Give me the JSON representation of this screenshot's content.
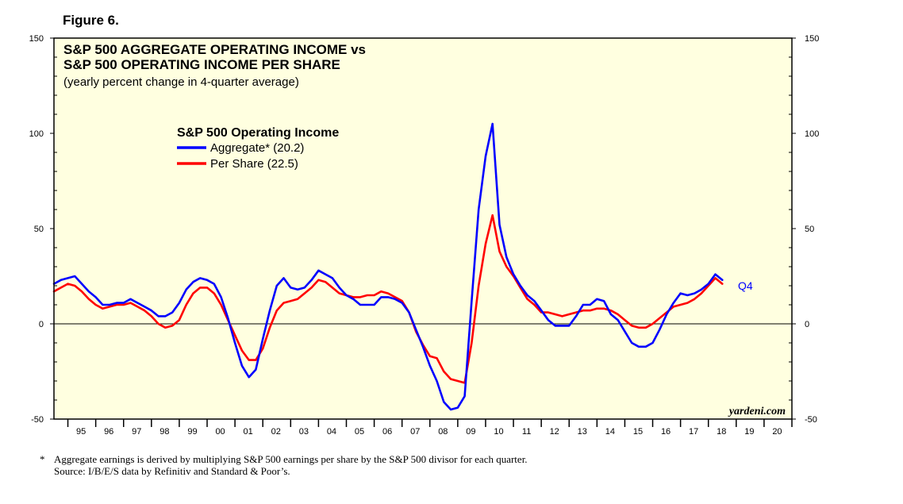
{
  "figure_label": "Figure 6.",
  "footnote": {
    "marker": "*",
    "line1": "Aggregate earnings is  derived by multiplying S&P 500 earnings per share by the S&P 500 divisor for each quarter.",
    "line2": "Source: I/B/E/S data by Refinitiv and Standard & Poor’s."
  },
  "colors": {
    "plot_bg": "#ffffe0",
    "aggregate": "#0000ff",
    "per_share": "#ff0000",
    "axis": "#000000"
  },
  "chart_data": {
    "type": "line",
    "title_line1": "S&P 500 AGGREGATE OPERATING  INCOME vs",
    "title_line2": "S&P 500 OPERATING INCOME PER SHARE",
    "subtitle": "(yearly percent change in 4-quarter average)",
    "legend_title": "S&P 500 Operating Income",
    "watermark": "yardeni.com",
    "end_label": "Q4",
    "ylim": [
      -50,
      150
    ],
    "yticks": [
      -50,
      0,
      50,
      100,
      150
    ],
    "ytick_labels": [
      "-50",
      "0",
      "50",
      "100",
      "150"
    ],
    "grid": false,
    "zero_line": true,
    "xlim": [
      1994.5,
      2021
    ],
    "year_labels": [
      "95",
      "96",
      "97",
      "98",
      "99",
      "00",
      "01",
      "02",
      "03",
      "04",
      "05",
      "06",
      "07",
      "08",
      "09",
      "10",
      "11",
      "12",
      "13",
      "14",
      "15",
      "16",
      "17",
      "18",
      "19",
      "20"
    ],
    "legend_position": "upper-left",
    "series": [
      {
        "name": "Aggregate* (20.2)",
        "color": "#0000ff",
        "points": [
          [
            1994.5,
            21
          ],
          [
            1994.75,
            23
          ],
          [
            1995.0,
            24
          ],
          [
            1995.25,
            25
          ],
          [
            1995.5,
            21
          ],
          [
            1995.75,
            17
          ],
          [
            1996.0,
            14
          ],
          [
            1996.25,
            10
          ],
          [
            1996.5,
            10
          ],
          [
            1996.75,
            11
          ],
          [
            1997.0,
            11
          ],
          [
            1997.25,
            13
          ],
          [
            1997.5,
            11
          ],
          [
            1997.75,
            9
          ],
          [
            1998.0,
            7
          ],
          [
            1998.25,
            4
          ],
          [
            1998.5,
            4
          ],
          [
            1998.75,
            6
          ],
          [
            1999.0,
            11
          ],
          [
            1999.25,
            18
          ],
          [
            1999.5,
            22
          ],
          [
            1999.75,
            24
          ],
          [
            2000.0,
            23
          ],
          [
            2000.25,
            21
          ],
          [
            2000.5,
            14
          ],
          [
            2000.75,
            3
          ],
          [
            2001.0,
            -10
          ],
          [
            2001.25,
            -22
          ],
          [
            2001.5,
            -28
          ],
          [
            2001.75,
            -24
          ],
          [
            2002.0,
            -8
          ],
          [
            2002.25,
            7
          ],
          [
            2002.5,
            20
          ],
          [
            2002.75,
            24
          ],
          [
            2003.0,
            19
          ],
          [
            2003.25,
            18
          ],
          [
            2003.5,
            19
          ],
          [
            2003.75,
            23
          ],
          [
            2004.0,
            28
          ],
          [
            2004.25,
            26
          ],
          [
            2004.5,
            24
          ],
          [
            2004.75,
            19
          ],
          [
            2005.0,
            15
          ],
          [
            2005.25,
            13
          ],
          [
            2005.5,
            10
          ],
          [
            2005.75,
            10
          ],
          [
            2006.0,
            10
          ],
          [
            2006.25,
            14
          ],
          [
            2006.5,
            14
          ],
          [
            2006.75,
            13
          ],
          [
            2007.0,
            11
          ],
          [
            2007.25,
            6
          ],
          [
            2007.5,
            -3
          ],
          [
            2007.75,
            -12
          ],
          [
            2008.0,
            -22
          ],
          [
            2008.25,
            -30
          ],
          [
            2008.5,
            -41
          ],
          [
            2008.75,
            -45
          ],
          [
            2009.0,
            -44
          ],
          [
            2009.25,
            -38
          ],
          [
            2009.5,
            12
          ],
          [
            2009.75,
            60
          ],
          [
            2010.0,
            88
          ],
          [
            2010.25,
            105
          ],
          [
            2010.5,
            52
          ],
          [
            2010.75,
            35
          ],
          [
            2011.0,
            26
          ],
          [
            2011.25,
            20
          ],
          [
            2011.5,
            15
          ],
          [
            2011.75,
            12
          ],
          [
            2012.0,
            7
          ],
          [
            2012.25,
            2
          ],
          [
            2012.5,
            -1
          ],
          [
            2012.75,
            -1
          ],
          [
            2013.0,
            -1
          ],
          [
            2013.25,
            4
          ],
          [
            2013.5,
            10
          ],
          [
            2013.75,
            10
          ],
          [
            2014.0,
            13
          ],
          [
            2014.25,
            12
          ],
          [
            2014.5,
            5
          ],
          [
            2014.75,
            2
          ],
          [
            2015.0,
            -4
          ],
          [
            2015.25,
            -10
          ],
          [
            2015.5,
            -12
          ],
          [
            2015.75,
            -12
          ],
          [
            2016.0,
            -10
          ],
          [
            2016.25,
            -3
          ],
          [
            2016.5,
            5
          ],
          [
            2016.75,
            11
          ],
          [
            2017.0,
            16
          ],
          [
            2017.25,
            15
          ],
          [
            2017.5,
            16
          ],
          [
            2017.75,
            18
          ],
          [
            2018.0,
            21
          ],
          [
            2018.25,
            26
          ],
          [
            2018.5,
            23
          ]
        ]
      },
      {
        "name": "Per Share (22.5)",
        "color": "#ff0000",
        "points": [
          [
            1994.5,
            17
          ],
          [
            1994.75,
            19
          ],
          [
            1995.0,
            21
          ],
          [
            1995.25,
            20
          ],
          [
            1995.5,
            17
          ],
          [
            1995.75,
            13
          ],
          [
            1996.0,
            10
          ],
          [
            1996.25,
            8
          ],
          [
            1996.5,
            9
          ],
          [
            1996.75,
            10
          ],
          [
            1997.0,
            10
          ],
          [
            1997.25,
            11
          ],
          [
            1997.5,
            9
          ],
          [
            1997.75,
            7
          ],
          [
            1998.0,
            4
          ],
          [
            1998.25,
            0
          ],
          [
            1998.5,
            -2
          ],
          [
            1998.75,
            -1
          ],
          [
            1999.0,
            2
          ],
          [
            1999.25,
            10
          ],
          [
            1999.5,
            16
          ],
          [
            1999.75,
            19
          ],
          [
            2000.0,
            19
          ],
          [
            2000.25,
            16
          ],
          [
            2000.5,
            10
          ],
          [
            2000.75,
            2
          ],
          [
            2001.0,
            -6
          ],
          [
            2001.25,
            -14
          ],
          [
            2001.5,
            -19
          ],
          [
            2001.75,
            -19
          ],
          [
            2002.0,
            -13
          ],
          [
            2002.25,
            -2
          ],
          [
            2002.5,
            7
          ],
          [
            2002.75,
            11
          ],
          [
            2003.0,
            12
          ],
          [
            2003.25,
            13
          ],
          [
            2003.5,
            16
          ],
          [
            2003.75,
            19
          ],
          [
            2004.0,
            23
          ],
          [
            2004.25,
            22
          ],
          [
            2004.5,
            19
          ],
          [
            2004.75,
            16
          ],
          [
            2005.0,
            15
          ],
          [
            2005.25,
            14
          ],
          [
            2005.5,
            14
          ],
          [
            2005.75,
            15
          ],
          [
            2006.0,
            15
          ],
          [
            2006.25,
            17
          ],
          [
            2006.5,
            16
          ],
          [
            2006.75,
            14
          ],
          [
            2007.0,
            12
          ],
          [
            2007.25,
            6
          ],
          [
            2007.5,
            -4
          ],
          [
            2007.75,
            -11
          ],
          [
            2008.0,
            -17
          ],
          [
            2008.25,
            -18
          ],
          [
            2008.5,
            -25
          ],
          [
            2008.75,
            -29
          ],
          [
            2009.0,
            -30
          ],
          [
            2009.25,
            -31
          ],
          [
            2009.5,
            -10
          ],
          [
            2009.75,
            20
          ],
          [
            2010.0,
            42
          ],
          [
            2010.25,
            57
          ],
          [
            2010.5,
            38
          ],
          [
            2010.75,
            30
          ],
          [
            2011.0,
            25
          ],
          [
            2011.25,
            19
          ],
          [
            2011.5,
            13
          ],
          [
            2011.75,
            10
          ],
          [
            2012.0,
            6
          ],
          [
            2012.25,
            6
          ],
          [
            2012.5,
            5
          ],
          [
            2012.75,
            4
          ],
          [
            2013.0,
            5
          ],
          [
            2013.25,
            6
          ],
          [
            2013.5,
            7
          ],
          [
            2013.75,
            7
          ],
          [
            2014.0,
            8
          ],
          [
            2014.25,
            8
          ],
          [
            2014.5,
            7
          ],
          [
            2014.75,
            5
          ],
          [
            2015.0,
            2
          ],
          [
            2015.25,
            -1
          ],
          [
            2015.5,
            -2
          ],
          [
            2015.75,
            -2
          ],
          [
            2016.0,
            0
          ],
          [
            2016.25,
            3
          ],
          [
            2016.5,
            6
          ],
          [
            2016.75,
            9
          ],
          [
            2017.0,
            10
          ],
          [
            2017.25,
            11
          ],
          [
            2017.5,
            13
          ],
          [
            2017.75,
            16
          ],
          [
            2018.0,
            20
          ],
          [
            2018.25,
            24
          ],
          [
            2018.5,
            21
          ]
        ]
      }
    ]
  }
}
